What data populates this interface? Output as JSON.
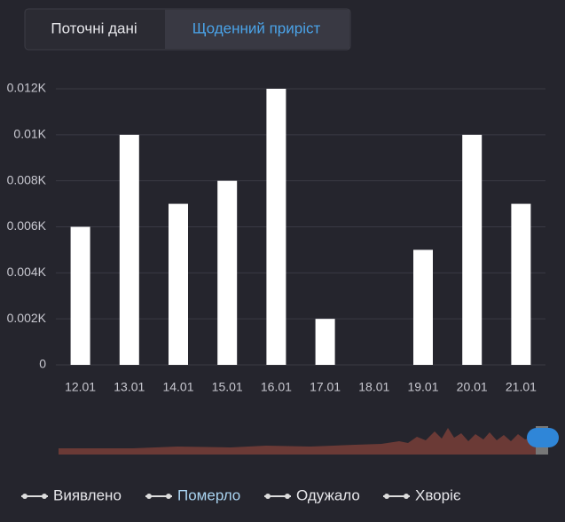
{
  "tabs": [
    "Поточні дані",
    "Щоденний приріст"
  ],
  "chart_data": {
    "type": "bar",
    "categories": [
      "12.01",
      "13.01",
      "14.01",
      "15.01",
      "16.01",
      "17.01",
      "18.01",
      "19.01",
      "20.01",
      "21.01"
    ],
    "values": [
      6,
      10,
      7,
      8,
      12,
      2,
      0,
      5,
      10,
      7
    ],
    "color": "#ffffff",
    "ylim": [
      0,
      12
    ],
    "yticks": [
      0,
      {
        "value": 2,
        "label": "0.002K"
      },
      {
        "value": 4,
        "label": "0.004K"
      },
      {
        "value": 6,
        "label": "0.006K"
      },
      {
        "value": 8,
        "label": "0.008K"
      },
      {
        "value": 10,
        "label": "0.01K"
      },
      {
        "value": 12,
        "label": "0.012K"
      }
    ],
    "grid": true,
    "legend": [
      "Виявлено",
      "Померло",
      "Одужало",
      "Хворіє"
    ],
    "active_legend": 1
  }
}
